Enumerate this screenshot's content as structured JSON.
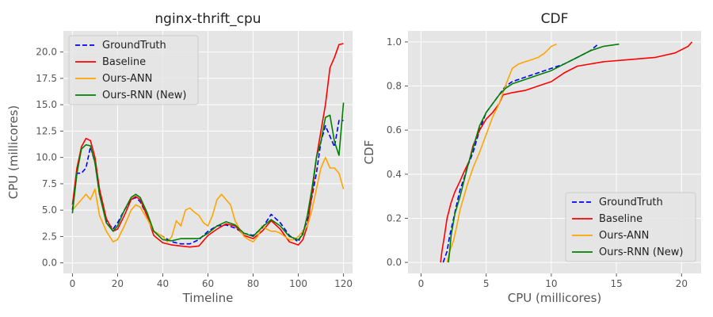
{
  "chart_data": [
    {
      "type": "line",
      "title": "nginx-thrift_cpu",
      "xlabel": "Timeline",
      "ylabel": "CPU (millicores)",
      "xlim": [
        -4,
        124
      ],
      "ylim": [
        -1.0,
        22.0
      ],
      "xticks": [
        0,
        20,
        40,
        60,
        80,
        100,
        120
      ],
      "yticks": [
        0.0,
        2.5,
        5.0,
        7.5,
        10.0,
        12.5,
        15.0,
        17.5,
        20.0
      ],
      "xtick_labels": [
        "0",
        "20",
        "40",
        "60",
        "80",
        "100",
        "120"
      ],
      "ytick_labels": [
        "0.0",
        "2.5",
        "5.0",
        "7.5",
        "10.0",
        "12.5",
        "15.0",
        "17.5",
        "20.0"
      ],
      "grid": true,
      "legend_position": "top-left",
      "series": [
        {
          "name": "GroundTruth",
          "color": "#0000ff",
          "dash": true,
          "x": [
            0,
            2,
            4,
            6,
            8,
            10,
            12,
            15,
            18,
            20,
            23,
            26,
            28,
            30,
            33,
            36,
            40,
            44,
            48,
            52,
            56,
            60,
            64,
            68,
            72,
            76,
            80,
            84,
            88,
            92,
            96,
            100,
            104,
            108,
            110,
            112,
            114,
            116,
            118,
            120
          ],
          "y": [
            5.0,
            8.5,
            8.5,
            9.0,
            11.0,
            9.5,
            6.5,
            4.0,
            3.2,
            3.8,
            5.0,
            6.0,
            6.2,
            5.8,
            4.5,
            3.0,
            2.5,
            2.0,
            1.8,
            1.8,
            2.2,
            3.0,
            3.5,
            3.6,
            3.3,
            2.8,
            2.6,
            3.3,
            4.6,
            3.8,
            2.6,
            2.0,
            4.0,
            8.5,
            11.5,
            13.0,
            12.0,
            11.0,
            13.5,
            13.5
          ]
        },
        {
          "name": "Baseline",
          "color": "#ff0000",
          "dash": false,
          "x": [
            0,
            2,
            4,
            6,
            8,
            10,
            12,
            15,
            18,
            20,
            23,
            26,
            28,
            30,
            33,
            36,
            40,
            44,
            48,
            52,
            56,
            60,
            64,
            68,
            72,
            76,
            80,
            84,
            88,
            92,
            96,
            100,
            102,
            104,
            106,
            108,
            110,
            112,
            114,
            116,
            118,
            120
          ],
          "y": [
            5.5,
            9.0,
            11.0,
            11.8,
            11.6,
            10.0,
            7.0,
            4.2,
            3.0,
            3.2,
            4.5,
            6.0,
            6.3,
            6.0,
            4.5,
            2.6,
            1.9,
            1.7,
            1.6,
            1.5,
            1.6,
            2.6,
            3.2,
            3.7,
            3.5,
            2.6,
            2.3,
            3.0,
            4.0,
            3.2,
            2.0,
            1.7,
            2.2,
            3.5,
            6.5,
            10.0,
            12.5,
            15.0,
            18.5,
            19.5,
            20.7,
            20.8
          ]
        },
        {
          "name": "Ours-ANN",
          "color": "#ffa500",
          "dash": false,
          "x": [
            0,
            2,
            4,
            6,
            8,
            10,
            12,
            15,
            18,
            20,
            23,
            26,
            28,
            30,
            33,
            36,
            40,
            42,
            44,
            46,
            48,
            50,
            52,
            54,
            56,
            58,
            60,
            62,
            64,
            66,
            68,
            70,
            72,
            74,
            76,
            78,
            80,
            82,
            84,
            86,
            88,
            90,
            92,
            94,
            96,
            98,
            100,
            102,
            104,
            106,
            108,
            110,
            112,
            114,
            116,
            118,
            120
          ],
          "y": [
            5.0,
            5.5,
            6.0,
            6.5,
            6.0,
            7.0,
            4.5,
            3.0,
            2.0,
            2.2,
            3.5,
            5.0,
            5.5,
            5.3,
            4.2,
            3.0,
            2.5,
            2.0,
            2.5,
            4.0,
            3.5,
            5.0,
            5.2,
            4.8,
            4.5,
            3.8,
            3.5,
            4.5,
            6.0,
            6.5,
            6.0,
            5.5,
            4.0,
            3.2,
            2.5,
            2.2,
            2.0,
            2.5,
            3.5,
            3.2,
            3.0,
            3.0,
            2.8,
            2.5,
            2.2,
            2.2,
            2.5,
            3.0,
            3.5,
            5.0,
            7.0,
            9.0,
            10.0,
            9.0,
            9.0,
            8.5,
            7.0
          ]
        },
        {
          "name": "Ours-RNN (New)",
          "color": "#008000",
          "dash": false,
          "x": [
            0,
            2,
            4,
            6,
            8,
            10,
            12,
            15,
            18,
            20,
            23,
            26,
            28,
            30,
            33,
            36,
            40,
            44,
            48,
            52,
            56,
            60,
            64,
            68,
            72,
            76,
            80,
            84,
            88,
            92,
            96,
            100,
            102,
            104,
            106,
            108,
            110,
            112,
            114,
            116,
            118,
            120
          ],
          "y": [
            4.7,
            8.5,
            10.8,
            11.2,
            11.1,
            9.5,
            6.5,
            3.8,
            3.0,
            3.5,
            5.0,
            6.2,
            6.5,
            6.2,
            4.8,
            3.0,
            2.2,
            2.1,
            2.3,
            2.3,
            2.3,
            2.8,
            3.5,
            3.9,
            3.6,
            2.8,
            2.5,
            3.4,
            4.1,
            3.5,
            2.5,
            2.2,
            2.7,
            4.5,
            7.0,
            10.0,
            11.5,
            13.8,
            14.0,
            11.5,
            10.2,
            15.2
          ]
        }
      ]
    },
    {
      "type": "line",
      "title": "CDF",
      "xlabel": "CPU (millicores)",
      "ylabel": "CDF",
      "xlim": [
        -1,
        21.5
      ],
      "ylim": [
        -0.05,
        1.05
      ],
      "xticks": [
        0,
        5,
        10,
        15,
        20
      ],
      "yticks": [
        0.0,
        0.2,
        0.4,
        0.6,
        0.8,
        1.0
      ],
      "xtick_labels": [
        "0",
        "5",
        "10",
        "15",
        "20"
      ],
      "ytick_labels": [
        "0.0",
        "0.2",
        "0.4",
        "0.6",
        "0.8",
        "1.0"
      ],
      "grid": true,
      "legend_position": "bottom-right",
      "series": [
        {
          "name": "GroundTruth",
          "color": "#0000ff",
          "dash": true,
          "x": [
            1.7,
            2.0,
            2.2,
            2.5,
            2.8,
            3.0,
            3.3,
            3.6,
            4.0,
            4.5,
            5.0,
            5.5,
            6.0,
            6.5,
            7.0,
            8.0,
            9.0,
            10.0,
            11.0,
            12.0,
            13.0,
            13.6
          ],
          "y": [
            0.0,
            0.05,
            0.12,
            0.2,
            0.28,
            0.33,
            0.38,
            0.44,
            0.5,
            0.6,
            0.68,
            0.72,
            0.76,
            0.8,
            0.82,
            0.84,
            0.86,
            0.88,
            0.9,
            0.93,
            0.96,
            0.99
          ]
        },
        {
          "name": "Baseline",
          "color": "#ff0000",
          "dash": false,
          "x": [
            1.5,
            1.6,
            1.8,
            2.0,
            2.3,
            2.6,
            3.0,
            3.3,
            3.7,
            4.0,
            4.5,
            5.0,
            5.5,
            6.0,
            6.3,
            7.0,
            8.0,
            9.0,
            10.0,
            11.0,
            12.0,
            14.0,
            16.0,
            18.0,
            19.5,
            20.5,
            20.8
          ],
          "y": [
            0.0,
            0.05,
            0.12,
            0.2,
            0.27,
            0.32,
            0.37,
            0.41,
            0.46,
            0.53,
            0.6,
            0.65,
            0.68,
            0.72,
            0.76,
            0.77,
            0.78,
            0.8,
            0.82,
            0.86,
            0.89,
            0.91,
            0.92,
            0.93,
            0.95,
            0.98,
            1.0
          ]
        },
        {
          "name": "Ours-ANN",
          "color": "#ffa500",
          "dash": false,
          "x": [
            2.0,
            2.2,
            2.5,
            2.8,
            3.0,
            3.3,
            3.6,
            4.0,
            4.5,
            5.0,
            5.5,
            6.0,
            6.3,
            6.6,
            7.0,
            7.5,
            8.0,
            8.5,
            9.0,
            9.5,
            10.0,
            10.4
          ],
          "y": [
            0.0,
            0.05,
            0.1,
            0.18,
            0.24,
            0.3,
            0.36,
            0.43,
            0.5,
            0.58,
            0.66,
            0.72,
            0.77,
            0.82,
            0.88,
            0.9,
            0.91,
            0.92,
            0.93,
            0.95,
            0.98,
            0.99
          ]
        },
        {
          "name": "Ours-RNN (New)",
          "color": "#008000",
          "dash": false,
          "x": [
            2.1,
            2.2,
            2.3,
            2.6,
            3.0,
            3.3,
            3.6,
            4.0,
            4.5,
            5.0,
            5.5,
            6.0,
            6.5,
            7.0,
            8.0,
            9.0,
            10.0,
            11.0,
            12.0,
            13.0,
            14.0,
            15.2
          ],
          "y": [
            0.0,
            0.05,
            0.12,
            0.22,
            0.3,
            0.37,
            0.44,
            0.52,
            0.62,
            0.68,
            0.72,
            0.76,
            0.79,
            0.81,
            0.83,
            0.85,
            0.87,
            0.9,
            0.93,
            0.96,
            0.98,
            0.99
          ]
        }
      ]
    }
  ]
}
